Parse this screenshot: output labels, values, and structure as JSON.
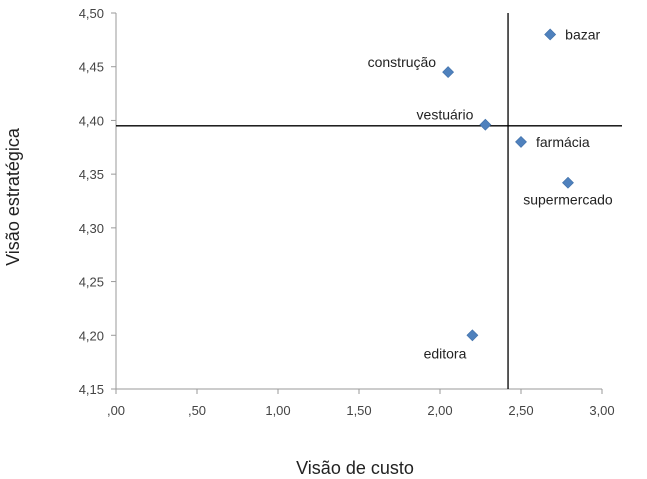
{
  "chart_data": {
    "type": "scatter",
    "title": "",
    "xlabel": "Visão de custo",
    "ylabel": "Visão estratégica",
    "xlim": [
      0,
      3
    ],
    "ylim": [
      4.15,
      4.5
    ],
    "x_ticks": [
      ",00",
      ",50",
      "1,00",
      "1,50",
      "2,00",
      "2,50",
      "3,00"
    ],
    "x_tick_values": [
      0,
      0.5,
      1,
      1.5,
      2,
      2.5,
      3
    ],
    "y_ticks": [
      "4,15",
      "4,20",
      "4,25",
      "4,30",
      "4,35",
      "4,40",
      "4,45",
      "4,50"
    ],
    "y_tick_values": [
      4.15,
      4.2,
      4.25,
      4.3,
      4.35,
      4.4,
      4.45,
      4.5
    ],
    "grid": false,
    "marker": "diamond",
    "marker_color": "#4F81BD",
    "reference_lines": {
      "vertical_x": 2.42,
      "horizontal_y": 4.395
    },
    "points": [
      {
        "label": "bazar",
        "x": 2.68,
        "y": 4.48,
        "label_side": "right"
      },
      {
        "label": "construção",
        "x": 2.05,
        "y": 4.445,
        "label_side": "left-above"
      },
      {
        "label": "vestuário",
        "x": 2.28,
        "y": 4.396,
        "label_side": "left-above"
      },
      {
        "label": "farmácia",
        "x": 2.5,
        "y": 4.38,
        "label_side": "right"
      },
      {
        "label": "supermercado",
        "x": 2.79,
        "y": 4.342,
        "label_side": "below"
      },
      {
        "label": "editora",
        "x": 2.2,
        "y": 4.2,
        "label_side": "left-below"
      }
    ]
  }
}
